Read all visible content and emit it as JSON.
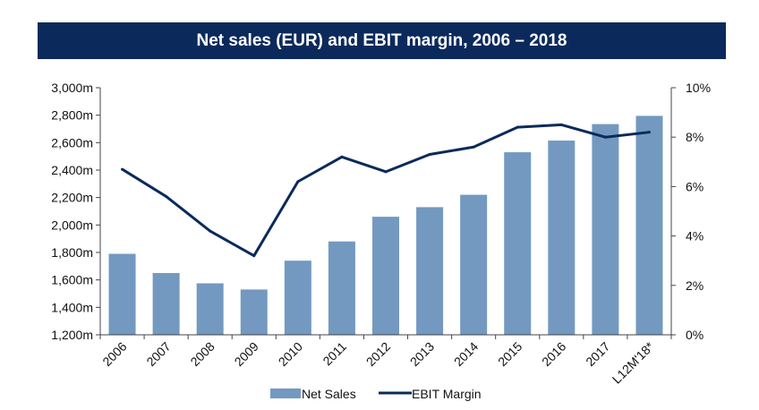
{
  "chart_data": {
    "type": "bar",
    "title": "Net sales (EUR) and EBIT margin, 2006 – 2018",
    "categories": [
      "2006",
      "2007",
      "2008",
      "2009",
      "2010",
      "2011",
      "2012",
      "2013",
      "2014",
      "2015",
      "2016",
      "2017",
      "L12M'18*"
    ],
    "series": [
      {
        "name": "Net Sales",
        "type": "bar",
        "axis": "left",
        "color": "#7399c0",
        "values": [
          1790,
          1650,
          1575,
          1530,
          1740,
          1880,
          2060,
          2130,
          2220,
          2530,
          2615,
          2735,
          2795
        ]
      },
      {
        "name": "EBIT Margin",
        "type": "line",
        "axis": "right",
        "color": "#0b2a5b",
        "values": [
          6.7,
          5.6,
          4.2,
          3.2,
          6.2,
          7.2,
          6.6,
          7.3,
          7.6,
          8.4,
          8.5,
          8.0,
          8.2
        ]
      }
    ],
    "y_left": {
      "ylim": [
        1200,
        3000
      ],
      "ticks": [
        1200,
        1400,
        1600,
        1800,
        2000,
        2200,
        2400,
        2600,
        2800,
        3000
      ],
      "tick_labels": [
        "1,200m",
        "1,400m",
        "1,600m",
        "1,800m",
        "2,000m",
        "2,200m",
        "2,400m",
        "2,600m",
        "2,800m",
        "3,000m"
      ]
    },
    "y_right": {
      "ylim": [
        0,
        10
      ],
      "ticks": [
        0,
        2,
        4,
        6,
        8,
        10
      ],
      "tick_labels": [
        "0%",
        "2%",
        "4%",
        "6%",
        "8%",
        "10%"
      ]
    },
    "xlabel": "",
    "ylabel": "",
    "grid": false,
    "legend_position": "bottom"
  }
}
